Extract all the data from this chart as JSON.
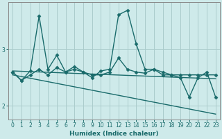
{
  "xlabel": "Humidex (Indice chaleur)",
  "background_color": "#ceeaea",
  "grid_color": "#aacccc",
  "line_color": "#1a6b6b",
  "x_ticks": [
    0,
    1,
    2,
    3,
    4,
    5,
    6,
    7,
    8,
    9,
    10,
    11,
    12,
    13,
    14,
    15,
    16,
    17,
    18,
    19,
    20,
    21,
    22,
    23
  ],
  "y_ticks": [
    2,
    3
  ],
  "xlim": [
    -0.5,
    23.5
  ],
  "ylim": [
    1.75,
    3.85
  ],
  "series": [
    {
      "x": [
        0,
        1,
        2,
        3,
        4,
        5,
        6,
        7,
        8,
        9,
        10,
        11,
        12,
        13,
        14,
        15,
        16,
        17,
        18,
        19,
        20,
        21,
        22,
        23
      ],
      "y": [
        2.6,
        2.45,
        2.62,
        3.6,
        2.65,
        2.9,
        2.6,
        2.7,
        2.6,
        2.5,
        2.62,
        2.65,
        3.62,
        3.7,
        3.1,
        2.65,
        2.65,
        2.55,
        2.55,
        2.55,
        2.55,
        2.55,
        2.55,
        2.55
      ],
      "marker": "D",
      "linewidth": 1.0,
      "markersize": 2.5
    },
    {
      "x": [
        0,
        1,
        2,
        3,
        4,
        5,
        6,
        7,
        8,
        9,
        10,
        11,
        12,
        13,
        14,
        15,
        16,
        17,
        18,
        19,
        20,
        21,
        22,
        23
      ],
      "y": [
        2.6,
        2.45,
        2.55,
        2.65,
        2.55,
        2.68,
        2.6,
        2.65,
        2.6,
        2.55,
        2.55,
        2.6,
        2.85,
        2.65,
        2.6,
        2.58,
        2.65,
        2.6,
        2.55,
        2.5,
        2.15,
        2.5,
        2.6,
        2.15
      ],
      "marker": "D",
      "linewidth": 1.0,
      "markersize": 2.5
    },
    {
      "x": [
        0,
        23
      ],
      "y": [
        2.62,
        2.48
      ],
      "marker": null,
      "linewidth": 1.0,
      "markersize": 0
    },
    {
      "x": [
        0,
        23
      ],
      "y": [
        2.55,
        1.85
      ],
      "marker": null,
      "linewidth": 1.0,
      "markersize": 0
    }
  ]
}
